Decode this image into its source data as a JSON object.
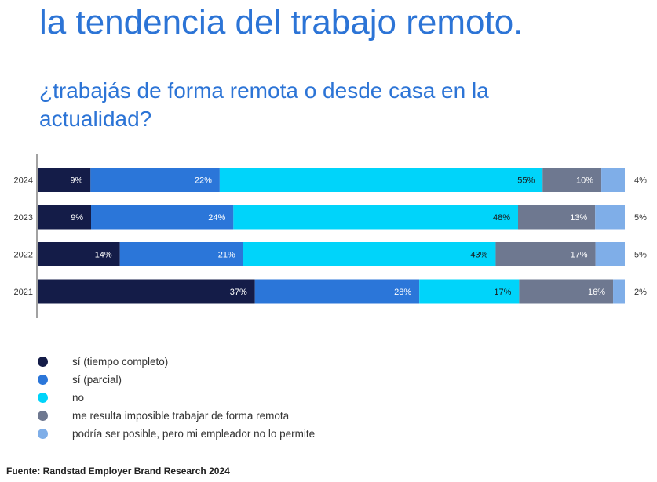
{
  "header": {
    "title": "la tendencia del trabajo remoto.",
    "subtitle": "¿trabajás de forma remota o desde casa en la actualidad?"
  },
  "chart_data": {
    "type": "bar",
    "orientation": "horizontal",
    "stacked": true,
    "categories": [
      "2024",
      "2023",
      "2022",
      "2021"
    ],
    "series": [
      {
        "name": "sí (tiempo completo)",
        "color": "#141c48",
        "values": [
          9,
          9,
          14,
          37
        ]
      },
      {
        "name": "sí (parcial)",
        "color": "#2b76d9",
        "values": [
          22,
          24,
          21,
          28
        ]
      },
      {
        "name": "no",
        "color": "#00d4fa",
        "values": [
          55,
          48,
          43,
          17
        ]
      },
      {
        "name": "me resulta imposible trabajar de forma remota",
        "color": "#6e7890",
        "values": [
          10,
          13,
          17,
          16
        ]
      },
      {
        "name": "podría ser posible, pero mi empleador no lo permite",
        "color": "#7faee8",
        "values": [
          4,
          5,
          5,
          2
        ]
      }
    ],
    "value_suffix": "%",
    "grid": false,
    "legend_position": "bottom-left"
  },
  "footer": {
    "source": "Fuente: Randstad Employer Brand Research 2024"
  }
}
